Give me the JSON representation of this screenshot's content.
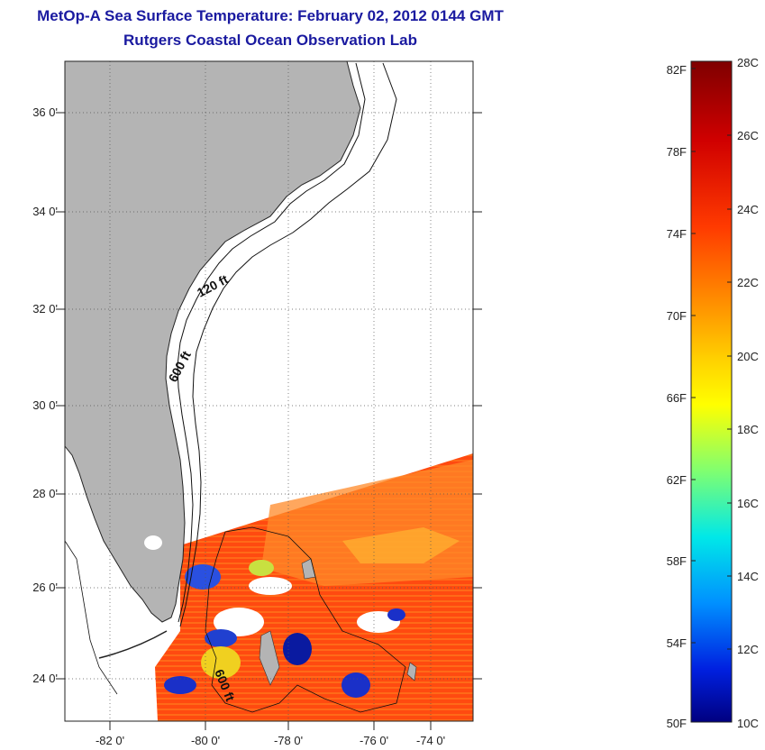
{
  "title": "MetOp-A Sea Surface Temperature:  February 02, 2012 0144 GMT",
  "subtitle": "Rutgers Coastal Ocean Observation Lab",
  "lat_labels": [
    "36 0'",
    "34 0'",
    "32 0'",
    "30 0'",
    "28 0'",
    "26 0'",
    "24 0'"
  ],
  "lon_labels": [
    "-82 0'",
    "-80 0'",
    "-78 0'",
    "-76 0'",
    "-74 0'"
  ],
  "isobath_labels": [
    "120 ft",
    "600 ft",
    "600 ft"
  ],
  "colorbar": {
    "fahrenheit": [
      "82F",
      "78F",
      "74F",
      "70F",
      "66F",
      "62F",
      "58F",
      "54F",
      "50F"
    ],
    "celsius": [
      "28C",
      "26C",
      "24C",
      "22C",
      "20C",
      "18C",
      "16C",
      "14C",
      "12C",
      "10C"
    ],
    "colors": [
      "#7f0000",
      "#b00000",
      "#e00000",
      "#ff2a00",
      "#ff6400",
      "#ff9a00",
      "#ffcc00",
      "#ffff00",
      "#c8ff30",
      "#80ff80",
      "#30ffd0",
      "#00d0ff",
      "#0090ff",
      "#0040ff",
      "#0000d0",
      "#000080"
    ]
  },
  "colors": {
    "land": "#b4b4b4",
    "title": "#1a1aa0",
    "sst_warm": "#ff3a10",
    "sst_mid": "#ff8a20",
    "sst_cool": "#1a3ad8"
  }
}
